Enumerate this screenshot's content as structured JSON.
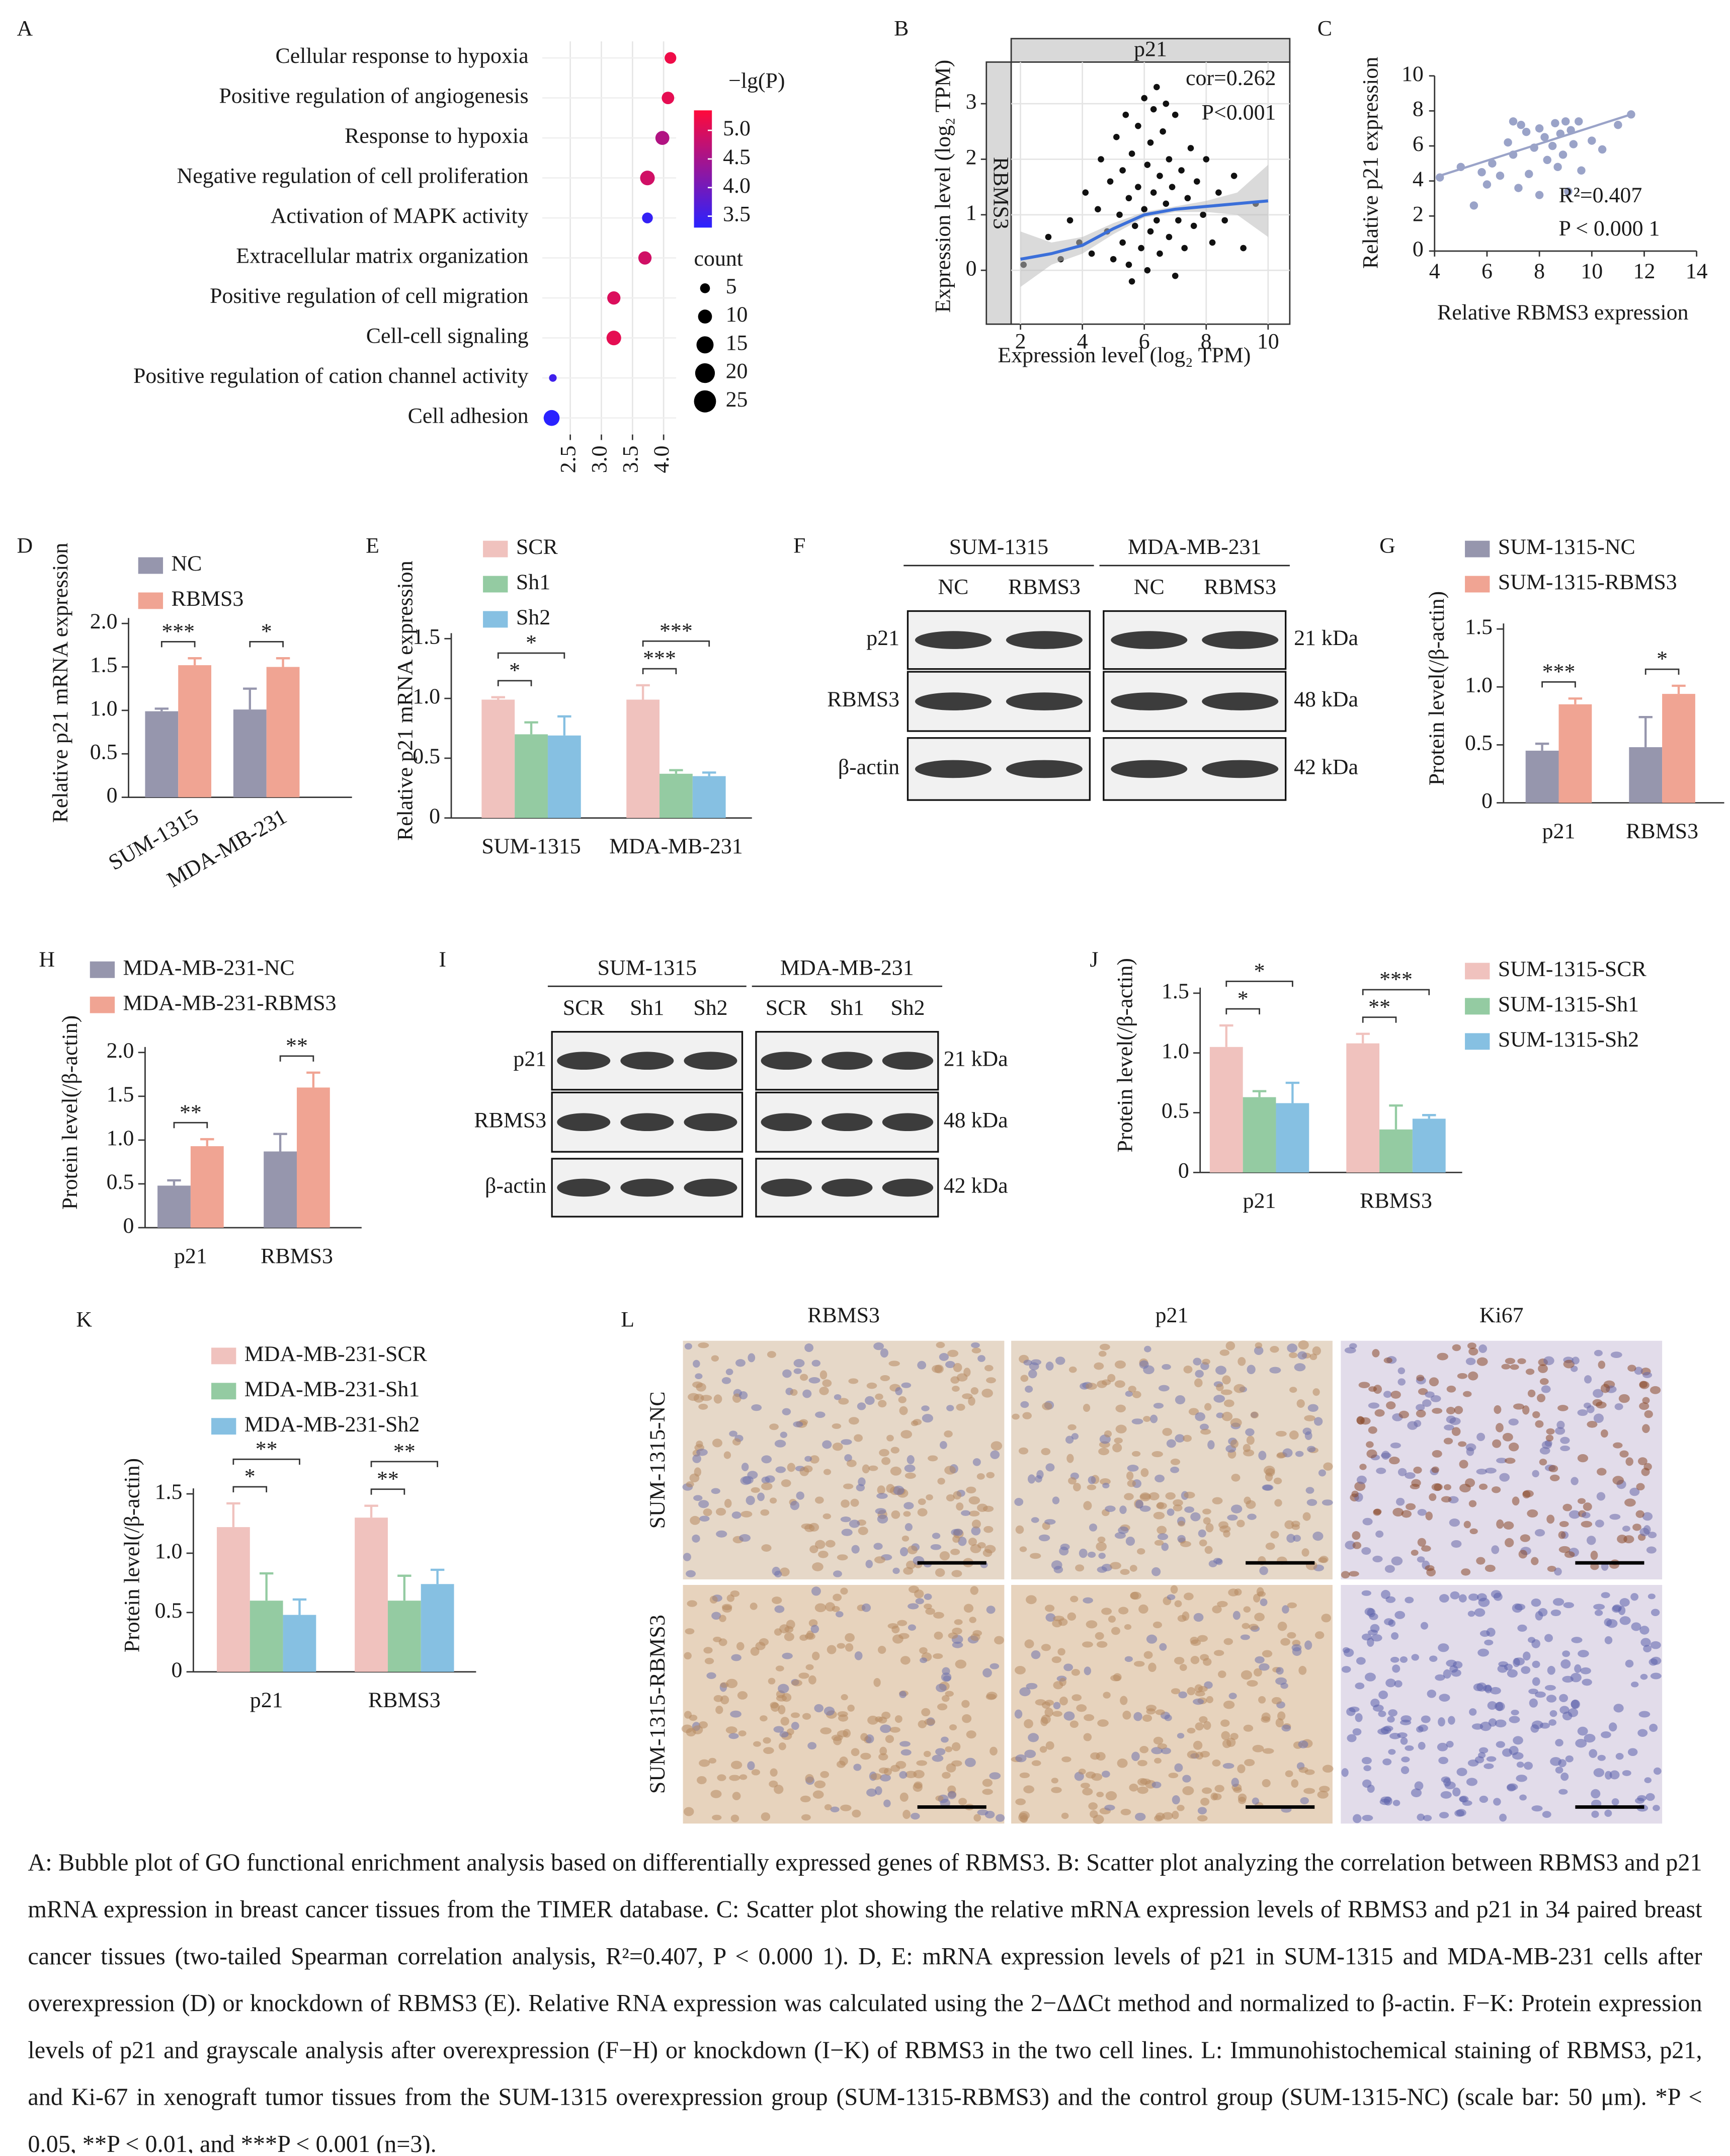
{
  "chart_data": [
    {
      "panel": "A",
      "type": "bubble",
      "categories": [
        "Cellular response to hypoxia",
        "Positive regulation of angiogenesis",
        "Response to hypoxia",
        "Negative regulation of cell proliferation",
        "Activation of MAPK activity",
        "Extracellular matrix organization",
        "Positive regulation of cell migration",
        "Cell-cell signaling",
        "Positive regulation of cation channel activity",
        "Cell adhesion"
      ],
      "x": [
        4.11,
        4.07,
        3.98,
        3.74,
        3.74,
        3.7,
        3.2,
        3.2,
        2.22,
        2.2
      ],
      "count": [
        7,
        8,
        10,
        11,
        6,
        9,
        9,
        11,
        3,
        13
      ],
      "lgp": [
        5.2,
        5.1,
        4.6,
        4.9,
        3.4,
        4.9,
        5.0,
        5.1,
        3.5,
        3.3
      ],
      "xlim": [
        2.05,
        4.2
      ],
      "xticks": [
        2.5,
        {
          "value": 3,
          "label": "3.0"
        },
        3.5,
        {
          "value": 4,
          "label": "4.0"
        }
      ],
      "grid": true,
      "color_title": "−lg(P)",
      "color_lim": [
        3.3,
        5.35
      ],
      "color_low": "#2a22ff",
      "color_high": "#ff0a3a",
      "color_ticks": [
        {
          "value": 5,
          "label": "5.0"
        },
        4.5,
        {
          "value": 4,
          "label": "4.0"
        },
        3.5
      ],
      "size_title": "count",
      "size_ticks": [
        5,
        10,
        15,
        20,
        25
      ]
    },
    {
      "panel": "B",
      "type": "scatter_facet",
      "title": "p21",
      "facet_label": "RBMS3",
      "annotations": [
        "cor=0.262",
        "P<0.001"
      ],
      "annotation_color": "#e0471f",
      "xlabel": "Expression level (log₂ TPM)",
      "ylabel": "Expression level (log₂ TPM)",
      "xlim": [
        1.7,
        10.7
      ],
      "xticks": [
        2,
        4,
        6,
        8,
        10
      ],
      "ylim": [
        -0.97,
        3.75
      ],
      "yticks": [
        0,
        1,
        2,
        3
      ],
      "grid": true,
      "x": [
        2.1,
        2.9,
        3.3,
        3.6,
        3.9,
        4.1,
        4.3,
        4.5,
        4.6,
        4.8,
        4.9,
        5.0,
        5.1,
        5.2,
        5.3,
        5.3,
        5.4,
        5.5,
        5.5,
        5.6,
        5.7,
        5.8,
        5.8,
        5.9,
        6.0,
        6.0,
        6.1,
        6.1,
        6.2,
        6.2,
        6.3,
        6.3,
        6.4,
        6.5,
        6.5,
        6.6,
        6.7,
        6.8,
        6.8,
        6.9,
        7.0,
        7.1,
        7.2,
        7.3,
        7.4,
        7.5,
        7.6,
        7.7,
        7.9,
        8.0,
        8.2,
        8.4,
        8.6,
        8.9,
        9.2,
        9.6,
        6.4,
        5.6,
        7.0,
        6.7
      ],
      "y": [
        0.1,
        0.6,
        0.2,
        0.9,
        0.5,
        1.4,
        0.3,
        1.1,
        2.0,
        0.7,
        1.6,
        0.2,
        2.4,
        1.0,
        0.5,
        1.8,
        2.8,
        0.1,
        1.3,
        2.1,
        0.8,
        1.5,
        2.6,
        0.4,
        1.1,
        3.1,
        0.0,
        1.9,
        0.7,
        2.3,
        1.4,
        2.9,
        0.9,
        0.3,
        1.7,
        2.5,
        1.2,
        0.6,
        2.0,
        1.5,
        2.8,
        0.9,
        1.8,
        0.4,
        1.3,
        2.2,
        0.8,
        1.6,
        1.0,
        2.0,
        0.5,
        1.4,
        0.9,
        1.7,
        0.4,
        1.2,
        3.3,
        -0.2,
        -0.1,
        3.0
      ],
      "fit_x": [
        2,
        3,
        4,
        5,
        6,
        7,
        8,
        9,
        10
      ],
      "fit_y": [
        0.2,
        0.3,
        0.45,
        0.75,
        1.0,
        1.1,
        1.15,
        1.2,
        1.25
      ],
      "fit_lower": [
        -0.3,
        0.1,
        0.3,
        0.65,
        0.95,
        1.05,
        1.05,
        1.0,
        0.6
      ],
      "fit_upper": [
        0.7,
        0.5,
        0.6,
        0.85,
        1.05,
        1.15,
        1.25,
        1.4,
        1.9
      ],
      "point_color": "#111111",
      "fit_color": "#3b6fd9"
    },
    {
      "panel": "C",
      "type": "scatter",
      "annotations": [
        "R²=0.407",
        "P < 0.000 1"
      ],
      "xlabel": "Relative RBMS3 expression",
      "ylabel": "Relative p21 expression",
      "xlim": [
        4,
        14
      ],
      "xticks": [
        4,
        6,
        8,
        10,
        12,
        14
      ],
      "ylim": [
        0,
        10
      ],
      "yticks": [
        0,
        2,
        4,
        6,
        8,
        10
      ],
      "x": [
        4.2,
        5.0,
        5.5,
        5.8,
        6.0,
        6.2,
        6.5,
        6.8,
        7.0,
        7.0,
        7.2,
        7.3,
        7.5,
        7.6,
        7.8,
        8.0,
        8.0,
        8.2,
        8.3,
        8.5,
        8.6,
        8.7,
        8.8,
        8.9,
        9.0,
        9.1,
        9.2,
        9.3,
        9.5,
        9.6,
        10.0,
        10.4,
        11.0,
        11.5
      ],
      "y": [
        4.2,
        4.8,
        2.6,
        4.5,
        3.8,
        5.0,
        4.3,
        6.2,
        7.4,
        5.5,
        3.6,
        7.2,
        6.8,
        4.4,
        5.9,
        7.0,
        3.2,
        6.5,
        5.2,
        6.0,
        7.3,
        4.8,
        6.7,
        5.5,
        7.4,
        3.4,
        6.9,
        6.1,
        7.4,
        4.6,
        6.3,
        5.8,
        7.2,
        7.8
      ],
      "fit_x": [
        4.2,
        11.5
      ],
      "fit_y": [
        4.3,
        7.8
      ],
      "point_color": "#9aa3c8"
    },
    {
      "panel": "D",
      "type": "bar",
      "ylabel": "Relative p21 mRNA expression",
      "categories": [
        "SUM-1315",
        "MDA-MB-231"
      ],
      "series": [
        {
          "name": "NC",
          "color": "#9696ad",
          "values": [
            0.99,
            1.01
          ],
          "errors": [
            0.03,
            0.24
          ]
        },
        {
          "name": "RBMS3",
          "color": "#f0a493",
          "values": [
            1.52,
            1.5
          ],
          "errors": [
            0.08,
            0.1
          ]
        }
      ],
      "significance": [
        [
          "***"
        ],
        [
          "*"
        ]
      ],
      "ylim": [
        0,
        2
      ],
      "yticks": [
        0,
        0.5,
        {
          "value": 1,
          "label": "1.0"
        },
        1.5,
        {
          "value": 2,
          "label": "2.0"
        }
      ]
    },
    {
      "panel": "E",
      "type": "bar",
      "ylabel": "Relative p21 mRNA expression",
      "categories": [
        "SUM-1315",
        "MDA-MB-231"
      ],
      "series": [
        {
          "name": "SCR",
          "color": "#f0c2be",
          "values": [
            0.99,
            0.99
          ],
          "errors": [
            0.02,
            0.12
          ]
        },
        {
          "name": "Sh1",
          "color": "#94cba2",
          "values": [
            0.7,
            0.37
          ],
          "errors": [
            0.1,
            0.03
          ]
        },
        {
          "name": "Sh2",
          "color": "#86c0e2",
          "values": [
            0.69,
            0.35
          ],
          "errors": [
            0.16,
            0.03
          ]
        }
      ],
      "significance": [
        [
          "*",
          "*"
        ],
        [
          "***",
          "***"
        ]
      ],
      "ylim": [
        0,
        1.5
      ],
      "yticks": [
        0,
        0.5,
        {
          "value": 1,
          "label": "1.0"
        },
        1.5
      ]
    },
    {
      "panel": "G",
      "type": "bar",
      "ylabel": "Protein level(/β-actin)",
      "categories": [
        "p21",
        "RBMS3"
      ],
      "series": [
        {
          "name": "SUM-1315-NC",
          "color": "#9696ad",
          "values": [
            0.45,
            0.48
          ],
          "errors": [
            0.06,
            0.26
          ]
        },
        {
          "name": "SUM-1315-RBMS3",
          "color": "#f0a493",
          "values": [
            0.85,
            0.94
          ],
          "errors": [
            0.05,
            0.07
          ]
        }
      ],
      "significance": [
        [
          "***"
        ],
        [
          "*"
        ]
      ],
      "ylim": [
        0,
        1.5
      ],
      "yticks": [
        0,
        0.5,
        {
          "value": 1,
          "label": "1.0"
        },
        1.5
      ]
    },
    {
      "panel": "H",
      "type": "bar",
      "ylabel": "Protein level(/β-actin)",
      "categories": [
        "p21",
        "RBMS3"
      ],
      "series": [
        {
          "name": "MDA-MB-231-NC",
          "color": "#9696ad",
          "values": [
            0.48,
            0.87
          ],
          "errors": [
            0.06,
            0.2
          ]
        },
        {
          "name": "MDA-MB-231-RBMS3",
          "color": "#f0a493",
          "values": [
            0.93,
            1.6
          ],
          "errors": [
            0.08,
            0.17
          ]
        }
      ],
      "significance": [
        [
          "**"
        ],
        [
          "**"
        ]
      ],
      "ylim": [
        0,
        2
      ],
      "yticks": [
        0,
        0.5,
        {
          "value": 1,
          "label": "1.0"
        },
        1.5,
        {
          "value": 2,
          "label": "2.0"
        }
      ]
    },
    {
      "panel": "J",
      "type": "bar",
      "ylabel": "Protein level(/β-actin)",
      "categories": [
        "p21",
        "RBMS3"
      ],
      "series": [
        {
          "name": "SUM-1315-SCR",
          "color": "#f0c2be",
          "values": [
            1.05,
            1.08
          ],
          "errors": [
            0.18,
            0.08
          ]
        },
        {
          "name": "SUM-1315-Sh1",
          "color": "#94cba2",
          "values": [
            0.63,
            0.36
          ],
          "errors": [
            0.05,
            0.2
          ]
        },
        {
          "name": "SUM-1315-Sh2",
          "color": "#86c0e2",
          "values": [
            0.58,
            0.45
          ],
          "errors": [
            0.17,
            0.03
          ]
        }
      ],
      "significance": [
        [
          "*",
          "*"
        ],
        [
          "**",
          "***"
        ]
      ],
      "ylim": [
        0,
        1.5
      ],
      "yticks": [
        0,
        0.5,
        {
          "value": 1,
          "label": "1.0"
        },
        1.5
      ]
    },
    {
      "panel": "K",
      "type": "bar",
      "ylabel": "Protein level(/β-actin)",
      "categories": [
        "p21",
        "RBMS3"
      ],
      "series": [
        {
          "name": "MDA-MB-231-SCR",
          "color": "#f0c2be",
          "values": [
            1.22,
            1.3
          ],
          "errors": [
            0.2,
            0.1
          ]
        },
        {
          "name": "MDA-MB-231-Sh1",
          "color": "#94cba2",
          "values": [
            0.6,
            0.6
          ],
          "errors": [
            0.23,
            0.21
          ]
        },
        {
          "name": "MDA-MB-231-Sh2",
          "color": "#86c0e2",
          "values": [
            0.48,
            0.74
          ],
          "errors": [
            0.13,
            0.12
          ]
        }
      ],
      "significance": [
        [
          "*",
          "**"
        ],
        [
          "**",
          "**"
        ]
      ],
      "ylim": [
        0,
        1.5
      ],
      "yticks": [
        0,
        0.5,
        {
          "value": 1,
          "label": "1.0"
        },
        1.5
      ]
    }
  ],
  "blots": [
    {
      "panel": "F",
      "groups": [
        "SUM-1315",
        "MDA-MB-231"
      ],
      "lanes": [
        "NC",
        "RBMS3",
        "NC",
        "RBMS3"
      ],
      "rows": [
        "p21",
        "RBMS3",
        "β-actin"
      ],
      "sizes": [
        "21 kDa",
        "48 kDa",
        "42 kDa"
      ]
    },
    {
      "panel": "I",
      "groups": [
        "SUM-1315",
        "MDA-MB-231"
      ],
      "lanes": [
        "SCR",
        "Sh1",
        "Sh2",
        "SCR",
        "Sh1",
        "Sh2"
      ],
      "rows": [
        "p21",
        "RBMS3",
        "β-actin"
      ],
      "sizes": [
        "21 kDa",
        "48 kDa",
        "42 kDa"
      ]
    }
  ],
  "ihc": {
    "panel": "L",
    "columns": [
      "RBMS3",
      "p21",
      "Ki67"
    ],
    "rows": [
      "SUM-1315-NC",
      "SUM-1315-RBMS3"
    ]
  },
  "caption": "A: Bubble plot of GO functional enrichment analysis based on differentially expressed genes of RBMS3. B: Scatter plot analyzing the correlation between RBMS3 and p21 mRNA expression in breast cancer tissues from the TIMER database. C: Scatter plot showing the relative mRNA expression levels of RBMS3 and p21 in 34 paired breast cancer tissues (two-tailed Spearman correlation analysis, R²=0.407, P < 0.000 1). D, E: mRNA expression levels of p21 in SUM-1315 and MDA-MB-231 cells after overexpression (D) or knockdown of RBMS3 (E). Relative RNA expression was calculated using the 2−ΔΔCt method and normalized to β-actin. F−K: Protein expression levels of p21 and grayscale analysis after overexpression (F−H) or knockdown (I−K) of RBMS3 in the two cell lines. L: Immunohistochemical staining of RBMS3, p21, and Ki-67 in xenograft tumor tissues from the SUM-1315 overexpression group (SUM-1315-RBMS3) and the control group (SUM-1315-NC) (scale bar: 50 μm). *P < 0.05, **P < 0.01, and ***P < 0.001 (n=3)."
}
